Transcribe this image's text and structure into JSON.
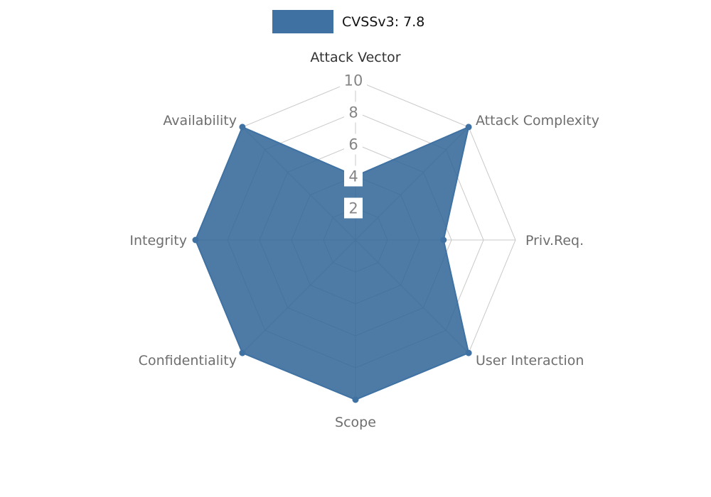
{
  "legend": {
    "label": "CVSSv3: 7.8"
  },
  "chart_data": {
    "type": "radar",
    "title": "CVSSv3: 7.8",
    "categories": [
      "Attack Vector",
      "Attack Complexity",
      "Priv.Req.",
      "User Interaction",
      "Scope",
      "Confidentiality",
      "Integrity",
      "Availability"
    ],
    "series": [
      {
        "name": "CVSSv3: 7.8",
        "values": [
          4,
          10,
          5.5,
          10,
          10,
          10,
          10,
          10
        ]
      }
    ],
    "ticks": [
      2,
      4,
      6,
      8,
      10
    ],
    "rlim": [
      0,
      10
    ],
    "grid": true,
    "legend_position": "top-center",
    "colors": {
      "series_stroke": "#3f72a3",
      "series_fill": "#2f6496",
      "series_fill_opacity": 0.85,
      "grid_line": "#c9c9c9",
      "tick_label": "#858585",
      "tick_label_background": "#ffffff",
      "axis_label": "#6e6e6e",
      "axis_label_primary": "#333333",
      "legend_text": "#111111"
    }
  }
}
